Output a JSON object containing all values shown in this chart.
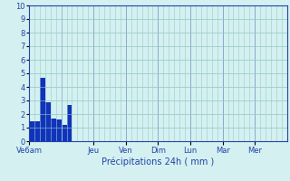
{
  "bar_values": [
    1.5,
    1.5,
    4.7,
    2.9,
    1.7,
    1.6,
    1.2,
    2.7,
    0,
    0,
    0,
    0,
    0,
    0,
    0,
    0,
    0,
    0,
    0,
    0,
    0,
    0,
    0,
    0,
    0,
    0,
    0,
    0,
    0,
    0,
    0,
    0,
    0,
    0,
    0,
    0,
    0,
    0,
    0,
    0,
    0,
    0,
    0,
    0,
    0,
    0,
    0,
    0
  ],
  "num_bars": 48,
  "bar_color": "#1133bb",
  "background_color": "#d4f0f0",
  "minor_grid_color": "#99cccc",
  "major_grid_color": "#88aacc",
  "axis_line_color": "#2244aa",
  "tick_label_color": "#2244aa",
  "xlabel": "Précipitations 24h ( mm )",
  "xlabel_color": "#2244aa",
  "ylim": [
    0,
    10
  ],
  "yticks": [
    0,
    1,
    2,
    3,
    4,
    5,
    6,
    7,
    8,
    9,
    10
  ],
  "xtick_labels": [
    "Ve6am",
    "Jeu",
    "Ven",
    "Dim",
    "Lun",
    "Mar",
    "Mer"
  ],
  "xtick_positions": [
    0,
    12,
    18,
    24,
    30,
    36,
    42
  ],
  "major_xtick_positions": [
    0,
    6,
    12,
    18,
    24,
    30,
    36,
    42,
    48
  ]
}
